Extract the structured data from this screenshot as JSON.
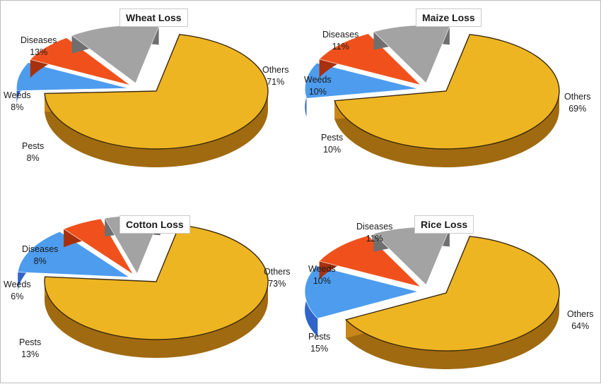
{
  "colors": {
    "Others": "#eeb522",
    "Others_side": "#a06a10",
    "Diseases": "#a3a3a3",
    "Diseases_side": "#6f6f6f",
    "Weeds": "#f0511c",
    "Weeds_side": "#a8300c",
    "Pests": "#4d9cee",
    "Pests_side": "#2f64c8",
    "Pests_exploded": "#1f4fbf"
  },
  "chart_data": [
    {
      "type": "pie",
      "title": "Wheat Loss",
      "slices": [
        {
          "label": "Others",
          "value": 71,
          "text": "71%"
        },
        {
          "label": "Diseases",
          "value": 13,
          "text": "13%"
        },
        {
          "label": "Weeds",
          "value": 8,
          "text": "8%"
        },
        {
          "label": "Pests",
          "value": 8,
          "text": "8%"
        }
      ]
    },
    {
      "type": "pie",
      "title": "Maize Loss",
      "slices": [
        {
          "label": "Others",
          "value": 69,
          "text": "69%"
        },
        {
          "label": "Diseases",
          "value": 11,
          "text": "11%"
        },
        {
          "label": "Weeds",
          "value": 10,
          "text": "10%"
        },
        {
          "label": "Pests",
          "value": 10,
          "text": "10%"
        }
      ]
    },
    {
      "type": "pie",
      "title": "Cotton Loss",
      "slices": [
        {
          "label": "Others",
          "value": 73,
          "text": "73%"
        },
        {
          "label": "Diseases",
          "value": 8,
          "text": "8%"
        },
        {
          "label": "Weeds",
          "value": 6,
          "text": "6%"
        },
        {
          "label": "Pests",
          "value": 13,
          "text": "13%"
        }
      ]
    },
    {
      "type": "pie",
      "title": "Rice Loss",
      "slices": [
        {
          "label": "Others",
          "value": 64,
          "text": "64%"
        },
        {
          "label": "Diseases",
          "value": 11,
          "text": "11%"
        },
        {
          "label": "Weeds",
          "value": 10,
          "text": "10%"
        },
        {
          "label": "Pests",
          "value": 15,
          "text": "15%"
        }
      ]
    }
  ]
}
